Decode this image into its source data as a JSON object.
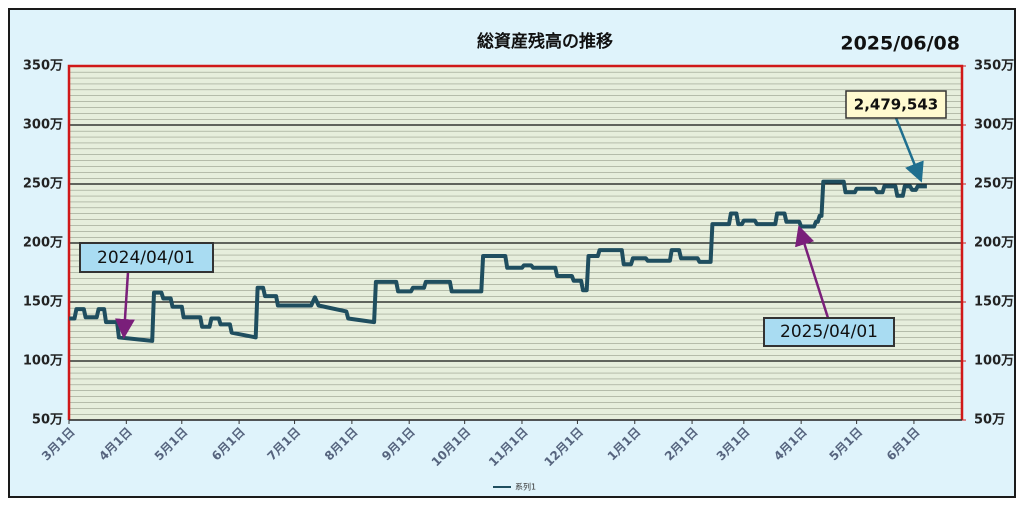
{
  "chart_data": {
    "type": "line",
    "title": "総資産残高の推移",
    "date": "2025/06/08",
    "annotations": [
      "2024/04/01",
      "2025/04/01",
      "2,479,543"
    ],
    "xlim": [
      0,
      483
    ],
    "xticks": [
      {
        "value": 0,
        "label": "3月1日"
      },
      {
        "value": 31,
        "label": "4月1日"
      },
      {
        "value": 61,
        "label": "5月1日"
      },
      {
        "value": 92,
        "label": "6月1日"
      },
      {
        "value": 122,
        "label": "7月1日"
      },
      {
        "value": 153,
        "label": "8月1日"
      },
      {
        "value": 184,
        "label": "9月1日"
      },
      {
        "value": 214,
        "label": "10月1日"
      },
      {
        "value": 245,
        "label": "11月1日"
      },
      {
        "value": 275,
        "label": "12月1日"
      },
      {
        "value": 306,
        "label": "1月1日"
      },
      {
        "value": 337,
        "label": "2月1日"
      },
      {
        "value": 365,
        "label": "3月1日"
      },
      {
        "value": 396,
        "label": "4月1日"
      },
      {
        "value": 426,
        "label": "5月1日"
      },
      {
        "value": 457,
        "label": "6月1日"
      }
    ],
    "ylim": [
      50,
      350
    ],
    "yticks": [
      {
        "value": 50,
        "label": "50万"
      },
      {
        "value": 100,
        "label": "100万"
      },
      {
        "value": 150,
        "label": "150万"
      },
      {
        "value": 200,
        "label": "200万"
      },
      {
        "value": 250,
        "label": "250万"
      },
      {
        "value": 300,
        "label": "300万"
      },
      {
        "value": 350,
        "label": "350万"
      }
    ],
    "y2lim": [
      50,
      350
    ],
    "y2ticks": [
      {
        "value": 50,
        "label": "50万"
      },
      {
        "value": 100,
        "label": "100万"
      },
      {
        "value": 150,
        "label": "150万"
      },
      {
        "value": 200,
        "label": "200万"
      },
      {
        "value": 250,
        "label": "250万"
      },
      {
        "value": 300,
        "label": "300万"
      },
      {
        "value": 350,
        "label": "350万"
      }
    ],
    "grid": true,
    "legend": "bottom",
    "series": [
      {
        "name": "系列1",
        "color": "#1f4e5f",
        "x": [
          0,
          3,
          4,
          8,
          9,
          15,
          16,
          19,
          20,
          26,
          27,
          45,
          46,
          50,
          51,
          55,
          56,
          61,
          62,
          71,
          72,
          76,
          77,
          81,
          82,
          87,
          88,
          101,
          102,
          105,
          106,
          112,
          113,
          131,
          133,
          135,
          150,
          151,
          165,
          166,
          177,
          178,
          185,
          186,
          192,
          193,
          206,
          207,
          223,
          224,
          236,
          237,
          245,
          246,
          250,
          251,
          263,
          264,
          272,
          273,
          277,
          278,
          280,
          281,
          286,
          287,
          299,
          300,
          304,
          305,
          312,
          313,
          325,
          326,
          330,
          331,
          340,
          341,
          347,
          348,
          357,
          358,
          361,
          362,
          364,
          365,
          371,
          372,
          382,
          383,
          387,
          388,
          395,
          396,
          403,
          404,
          405,
          406,
          407,
          408,
          419,
          420,
          425,
          426,
          436,
          437,
          440,
          441,
          447,
          448,
          451,
          452,
          455,
          456,
          458,
          459,
          464
        ],
        "values": [
          136,
          136,
          144,
          144,
          137,
          137,
          144,
          144,
          133,
          133,
          120,
          117,
          158,
          158,
          153,
          153,
          146,
          146,
          137,
          137,
          129,
          129,
          136,
          136,
          131,
          131,
          124,
          120,
          162,
          162,
          155,
          155,
          147,
          147,
          154,
          147,
          142,
          136,
          133,
          167,
          167,
          159,
          159,
          162,
          162,
          167,
          167,
          159,
          159,
          189,
          189,
          179,
          179,
          181,
          181,
          179,
          179,
          172,
          172,
          168,
          168,
          160,
          160,
          189,
          189,
          194,
          194,
          182,
          182,
          187,
          187,
          185,
          185,
          194,
          194,
          187,
          187,
          184,
          184,
          216,
          216,
          225,
          225,
          216,
          216,
          219,
          219,
          216,
          216,
          225,
          225,
          218,
          218,
          214,
          214,
          218,
          218,
          223,
          223,
          252,
          252,
          243,
          243,
          246,
          246,
          243,
          243,
          248,
          248,
          240,
          240,
          248,
          248,
          245,
          245,
          248,
          248
        ]
      }
    ]
  }
}
